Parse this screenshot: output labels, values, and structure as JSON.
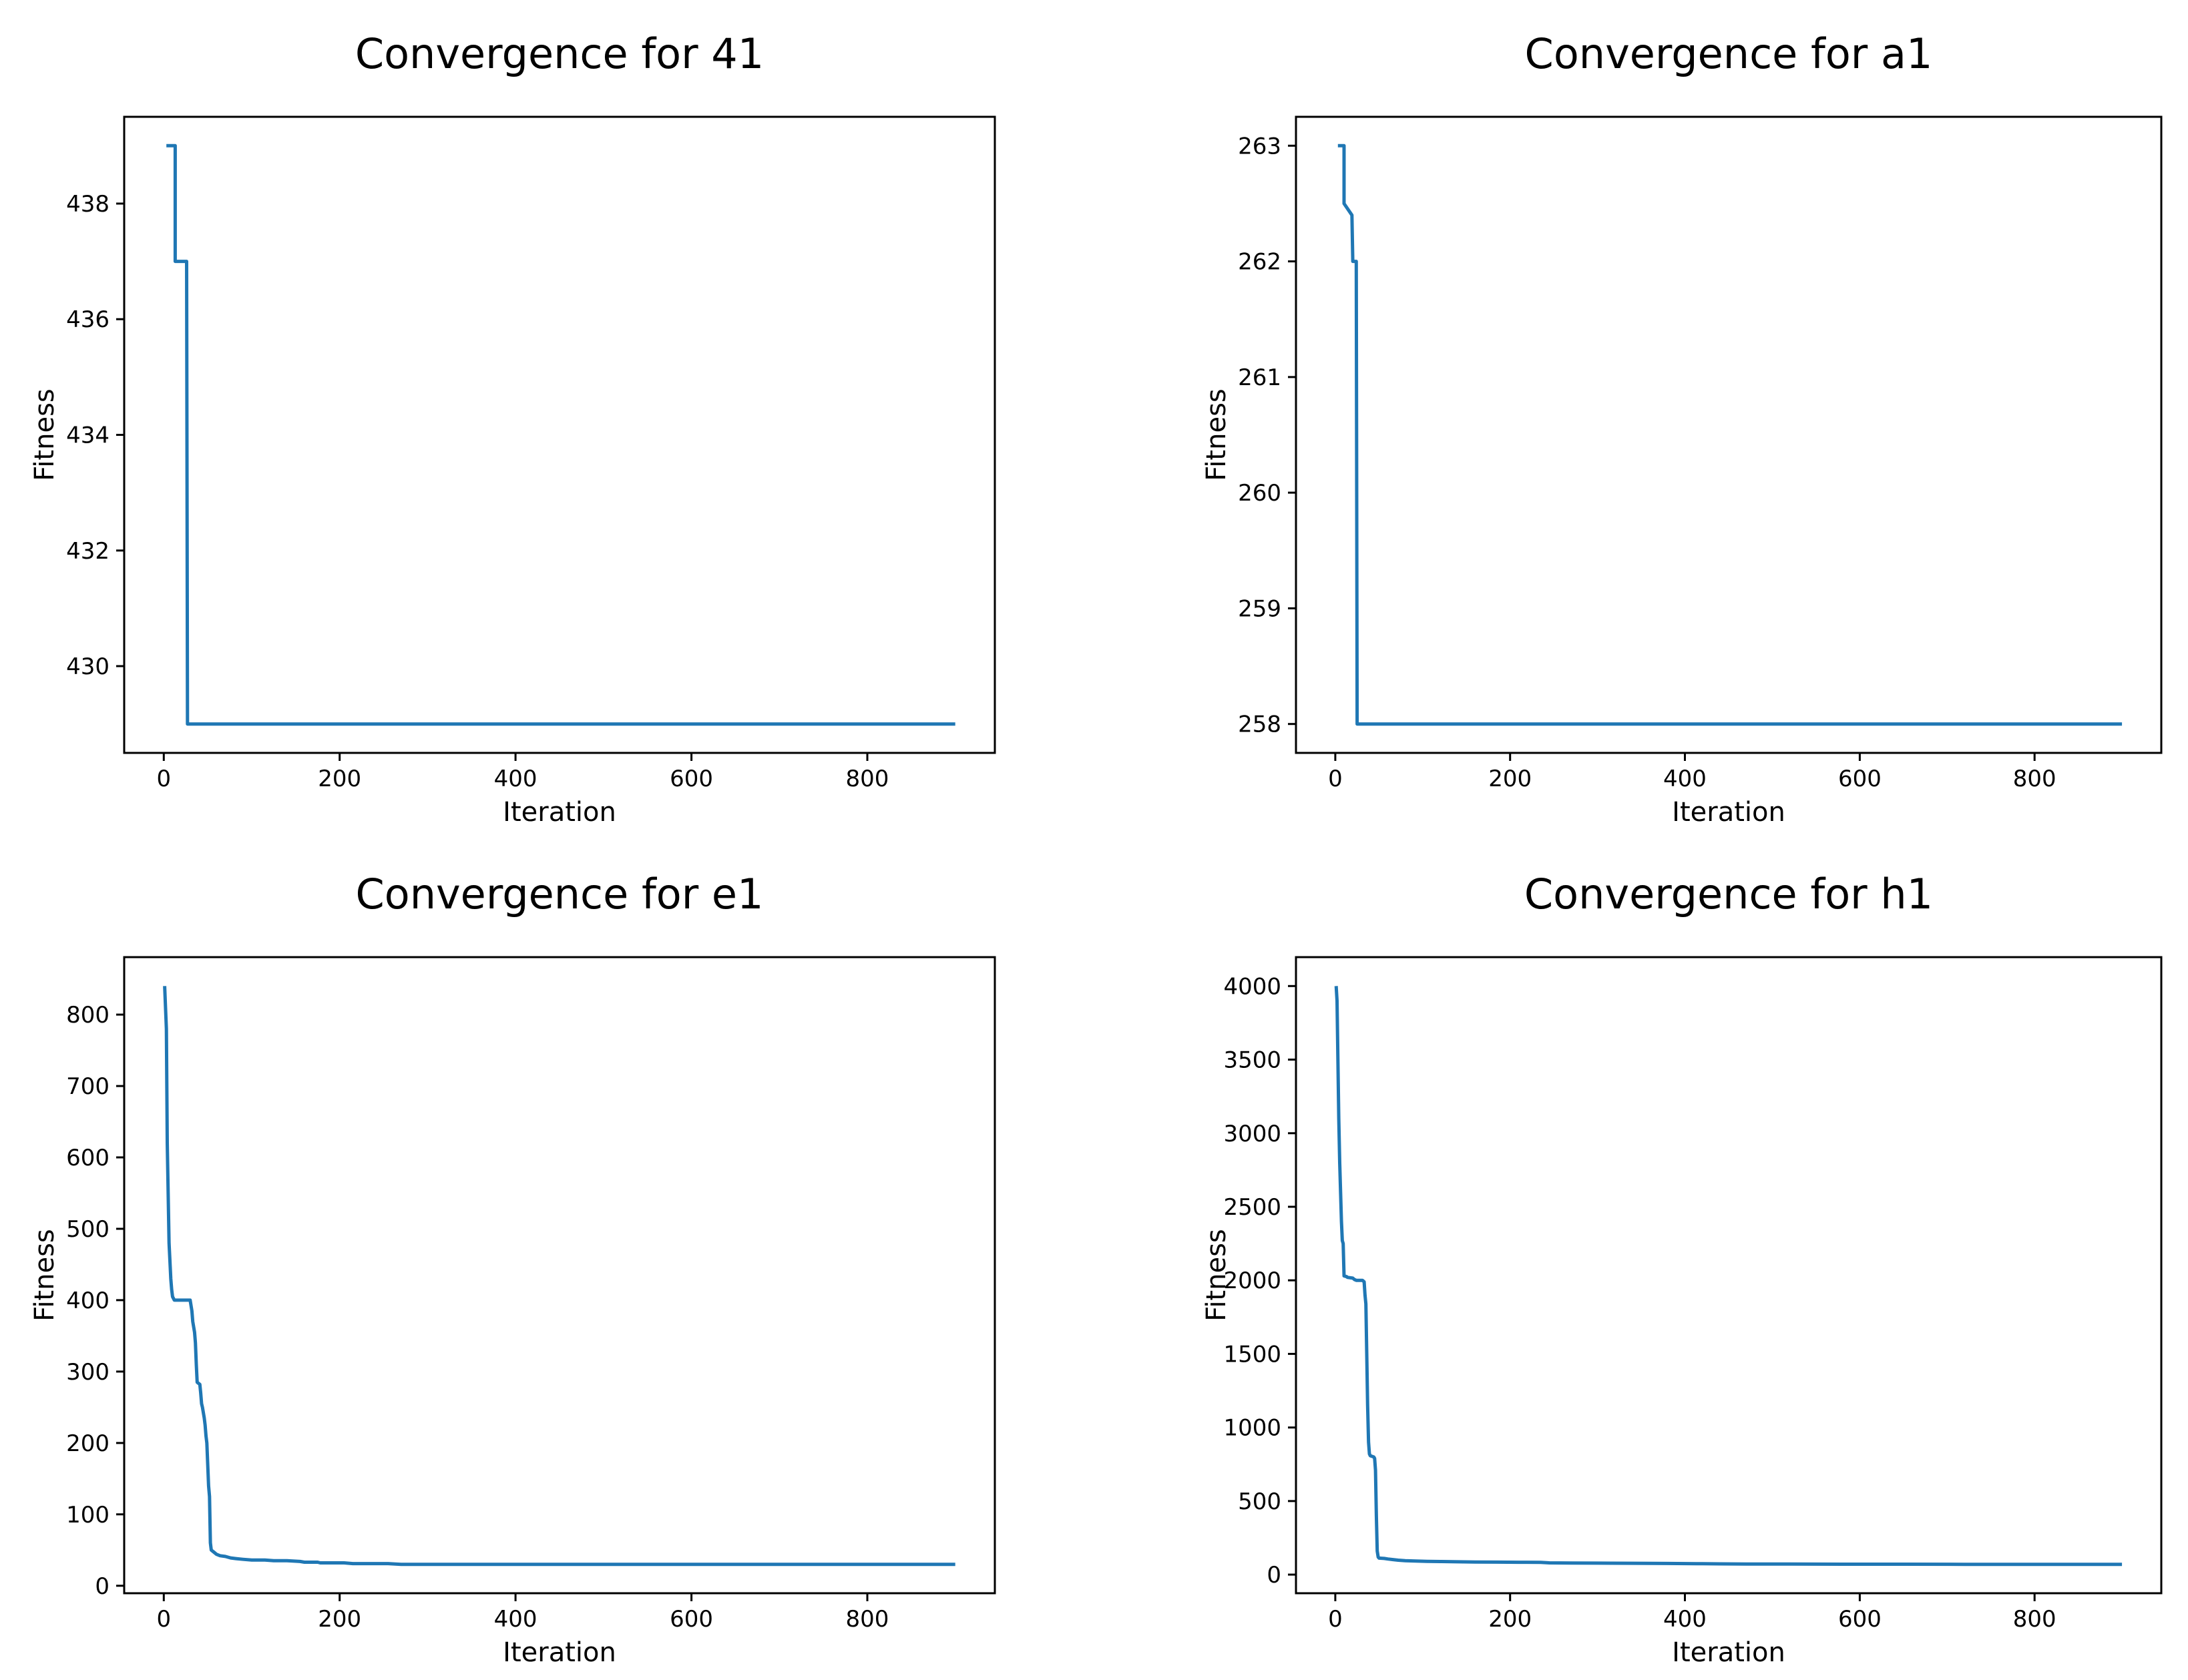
{
  "figure": {
    "background": "#ffffff",
    "text_color": "#000000",
    "line_color": "#1f77b4"
  },
  "chart_data": [
    {
      "type": "line",
      "title": "Convergence for 41",
      "xlabel": "Iteration",
      "ylabel": "Fitness",
      "xlim": [
        -45,
        945
      ],
      "ylim": [
        428.5,
        439.5
      ],
      "xticks": [
        0,
        200,
        400,
        600,
        800
      ],
      "yticks": [
        430,
        432,
        434,
        436,
        438
      ],
      "grid": false,
      "legend": null,
      "line_color": "#1f77b4",
      "points": [
        [
          3,
          439
        ],
        [
          13,
          439
        ],
        [
          13,
          437
        ],
        [
          26,
          437
        ],
        [
          27,
          429
        ],
        [
          900,
          429
        ]
      ]
    },
    {
      "type": "line",
      "title": "Convergence for a1",
      "xlabel": "Iteration",
      "ylabel": "Fitness",
      "xlim": [
        -45,
        945
      ],
      "ylim": [
        257.75,
        263.25
      ],
      "xticks": [
        0,
        200,
        400,
        600,
        800
      ],
      "yticks": [
        258,
        259,
        260,
        261,
        262,
        263
      ],
      "grid": false,
      "legend": null,
      "line_color": "#1f77b4",
      "points": [
        [
          3,
          263
        ],
        [
          10,
          263
        ],
        [
          10,
          262.5
        ],
        [
          19,
          262.4
        ],
        [
          20,
          262
        ],
        [
          24,
          262
        ],
        [
          25,
          258
        ],
        [
          900,
          258
        ]
      ]
    },
    {
      "type": "line",
      "title": "Convergence for e1",
      "xlabel": "Iteration",
      "ylabel": "Fitness",
      "xlim": [
        -45,
        945
      ],
      "ylim": [
        -10.5,
        880.5
      ],
      "xticks": [
        0,
        200,
        400,
        600,
        800
      ],
      "yticks": [
        0,
        100,
        200,
        300,
        400,
        500,
        600,
        700,
        800
      ],
      "grid": false,
      "legend": null,
      "line_color": "#1f77b4",
      "points": [
        [
          1,
          840
        ],
        [
          3,
          780
        ],
        [
          4,
          620
        ],
        [
          6,
          480
        ],
        [
          8,
          430
        ],
        [
          9,
          415
        ],
        [
          10,
          405
        ],
        [
          12,
          400
        ],
        [
          30,
          400
        ],
        [
          32,
          385
        ],
        [
          33,
          370
        ],
        [
          35,
          355
        ],
        [
          36,
          340
        ],
        [
          37,
          310
        ],
        [
          38,
          285
        ],
        [
          41,
          282
        ],
        [
          42,
          270
        ],
        [
          43,
          255
        ],
        [
          44,
          250
        ],
        [
          46,
          235
        ],
        [
          47,
          225
        ],
        [
          48,
          210
        ],
        [
          49,
          200
        ],
        [
          50,
          170
        ],
        [
          51,
          140
        ],
        [
          52,
          125
        ],
        [
          53,
          60
        ],
        [
          54,
          50
        ],
        [
          57,
          47
        ],
        [
          60,
          44
        ],
        [
          64,
          42
        ],
        [
          70,
          41
        ],
        [
          76,
          39
        ],
        [
          82,
          38
        ],
        [
          90,
          37
        ],
        [
          100,
          36
        ],
        [
          115,
          36
        ],
        [
          125,
          35
        ],
        [
          140,
          35
        ],
        [
          155,
          34
        ],
        [
          160,
          33
        ],
        [
          175,
          33
        ],
        [
          178,
          32
        ],
        [
          205,
          32
        ],
        [
          215,
          31
        ],
        [
          255,
          31
        ],
        [
          270,
          30
        ],
        [
          290,
          30
        ],
        [
          900,
          30
        ]
      ]
    },
    {
      "type": "line",
      "title": "Convergence for h1",
      "xlabel": "Iteration",
      "ylabel": "Fitness",
      "xlim": [
        -45,
        945
      ],
      "ylim": [
        -126.5,
        4196.5
      ],
      "xticks": [
        0,
        200,
        400,
        600,
        800
      ],
      "yticks": [
        0,
        500,
        1000,
        1500,
        2000,
        2500,
        3000,
        3500,
        4000
      ],
      "grid": false,
      "legend": null,
      "line_color": "#1f77b4",
      "points": [
        [
          1,
          4000
        ],
        [
          2,
          3900
        ],
        [
          3,
          3500
        ],
        [
          4,
          3100
        ],
        [
          5,
          2800
        ],
        [
          6,
          2600
        ],
        [
          7,
          2400
        ],
        [
          8,
          2270
        ],
        [
          9,
          2250
        ],
        [
          10,
          2030
        ],
        [
          13,
          2025
        ],
        [
          14,
          2020
        ],
        [
          20,
          2015
        ],
        [
          22,
          2005
        ],
        [
          24,
          2000
        ],
        [
          31,
          2000
        ],
        [
          33,
          1990
        ],
        [
          34,
          1900
        ],
        [
          35,
          1840
        ],
        [
          36,
          1500
        ],
        [
          37,
          1150
        ],
        [
          38,
          900
        ],
        [
          39,
          820
        ],
        [
          40,
          808
        ],
        [
          44,
          800
        ],
        [
          45,
          790
        ],
        [
          46,
          710
        ],
        [
          47,
          400
        ],
        [
          48,
          160
        ],
        [
          49,
          120
        ],
        [
          50,
          112
        ],
        [
          56,
          110
        ],
        [
          60,
          106
        ],
        [
          66,
          102
        ],
        [
          72,
          98
        ],
        [
          80,
          95
        ],
        [
          92,
          92
        ],
        [
          105,
          90
        ],
        [
          120,
          89
        ],
        [
          140,
          87
        ],
        [
          160,
          86
        ],
        [
          185,
          85
        ],
        [
          210,
          84
        ],
        [
          235,
          83
        ],
        [
          245,
          80
        ],
        [
          270,
          79
        ],
        [
          300,
          78
        ],
        [
          340,
          77
        ],
        [
          380,
          76
        ],
        [
          420,
          74
        ],
        [
          440,
          73
        ],
        [
          470,
          72
        ],
        [
          520,
          72
        ],
        [
          580,
          71
        ],
        [
          650,
          71
        ],
        [
          720,
          70
        ],
        [
          800,
          70
        ],
        [
          900,
          70
        ]
      ]
    }
  ]
}
